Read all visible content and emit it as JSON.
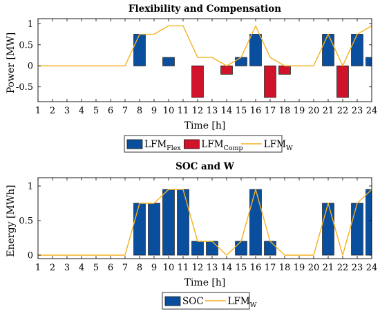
{
  "chart_data": [
    {
      "type": "bar",
      "title": "Flexibility and Compensation",
      "xlabel": "Time [h]",
      "ylabel": "Power [MW]",
      "ylim": [
        -0.85,
        1.12
      ],
      "grid": false,
      "categories": [
        "1",
        "2",
        "3",
        "4",
        "5",
        "6",
        "7",
        "8",
        "9",
        "10",
        "11",
        "12",
        "13",
        "14",
        "15",
        "16",
        "17",
        "18",
        "19",
        "20",
        "21",
        "22",
        "23",
        "24"
      ],
      "yticks": [
        "-0.5",
        "0",
        "0.5",
        "1"
      ],
      "ytick_values": [
        -0.5,
        0,
        0.5,
        1
      ],
      "series": [
        {
          "name": "LFM",
          "name_sub": "Flex",
          "kind": "bar",
          "color": "#0a4f9e",
          "values": [
            0,
            0,
            0,
            0,
            0,
            0,
            0,
            0.75,
            0,
            0.2,
            0,
            0,
            0,
            0,
            0.2,
            0.75,
            0,
            0,
            0,
            0,
            0.75,
            0,
            0.75,
            0.2
          ]
        },
        {
          "name": "LFM",
          "name_sub": "Comp",
          "kind": "bar",
          "color": "#d1122b",
          "values": [
            0,
            0,
            0,
            0,
            0,
            0,
            0,
            0,
            0,
            0,
            0,
            -0.75,
            0,
            -0.2,
            0,
            0,
            -0.75,
            -0.2,
            0,
            0,
            0,
            -0.75,
            0,
            0
          ]
        },
        {
          "name": "LFM",
          "name_sub": "W",
          "kind": "line",
          "color": "#f5b120",
          "values": [
            0,
            0,
            0,
            0,
            0,
            0,
            0,
            0.75,
            0.75,
            0.95,
            0.95,
            0.2,
            0.2,
            0,
            0.2,
            0.95,
            0.2,
            0,
            0,
            0,
            0.75,
            0,
            0.75,
            0.95
          ]
        }
      ],
      "legend": "below"
    },
    {
      "type": "bar",
      "title": "SOC and W",
      "xlabel": "Time [h]",
      "ylabel": "Energy [MWh]",
      "ylim": [
        -0.05,
        1.12
      ],
      "grid": false,
      "categories": [
        "1",
        "2",
        "3",
        "4",
        "5",
        "6",
        "7",
        "8",
        "9",
        "10",
        "11",
        "12",
        "13",
        "14",
        "15",
        "16",
        "17",
        "18",
        "19",
        "20",
        "21",
        "22",
        "23",
        "24"
      ],
      "yticks": [
        "0",
        "0.5",
        "1"
      ],
      "ytick_values": [
        0,
        0.5,
        1
      ],
      "series": [
        {
          "name": "SOC",
          "name_sub": "",
          "kind": "bar",
          "color": "#0a4f9e",
          "values": [
            0,
            0,
            0,
            0,
            0,
            0,
            0,
            0.75,
            0.75,
            0.95,
            0.95,
            0.2,
            0.2,
            0,
            0.2,
            0.95,
            0.2,
            0,
            0,
            0,
            0.75,
            0,
            0.75,
            0.95
          ]
        },
        {
          "name": "LFM",
          "name_sub": "W",
          "kind": "line",
          "color": "#f5b120",
          "values": [
            0,
            0,
            0,
            0,
            0,
            0,
            0,
            0.75,
            0.75,
            0.95,
            0.95,
            0.2,
            0.2,
            0,
            0.2,
            0.95,
            0.2,
            0,
            0,
            0,
            0.75,
            0,
            0.75,
            0.95
          ]
        }
      ],
      "legend": "below"
    }
  ]
}
